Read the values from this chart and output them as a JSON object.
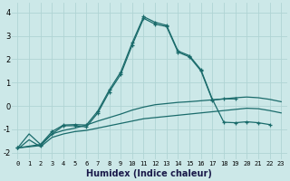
{
  "xlabel": "Humidex (Indice chaleur)",
  "bg_color": "#cce8e8",
  "grid_color": "#b0d4d4",
  "line_color": "#1a6b6b",
  "xlim": [
    -0.5,
    23.5
  ],
  "ylim": [
    -2.3,
    4.4
  ],
  "xticks": [
    0,
    1,
    2,
    3,
    4,
    5,
    6,
    7,
    8,
    9,
    10,
    11,
    12,
    13,
    14,
    15,
    16,
    17,
    18,
    19,
    20,
    21,
    22,
    23
  ],
  "yticks": [
    -2,
    -1,
    0,
    1,
    2,
    3,
    4
  ],
  "lines": [
    {
      "x": [
        0,
        1,
        2,
        3,
        4,
        5,
        6,
        7,
        8,
        9,
        10,
        11,
        12,
        13,
        14,
        15,
        16,
        17,
        18,
        19,
        20,
        21,
        22,
        23
      ],
      "y": [
        -1.85,
        -1.45,
        -1.75,
        -1.35,
        -1.2,
        -1.1,
        -1.05,
        -0.95,
        -0.85,
        -0.75,
        -0.65,
        -0.55,
        -0.5,
        -0.45,
        -0.4,
        -0.35,
        -0.3,
        -0.25,
        -0.2,
        -0.15,
        -0.1,
        -0.12,
        -0.2,
        -0.3
      ],
      "marker": null,
      "lw": 0.9
    },
    {
      "x": [
        0,
        1,
        2,
        3,
        4,
        5,
        6,
        7,
        8,
        9,
        10,
        11,
        12,
        13,
        14,
        15,
        16,
        17,
        18,
        19,
        20,
        21,
        22,
        23
      ],
      "y": [
        -1.8,
        -1.2,
        -1.65,
        -1.2,
        -1.05,
        -0.95,
        -0.82,
        -0.65,
        -0.5,
        -0.35,
        -0.18,
        -0.05,
        0.05,
        0.1,
        0.15,
        0.18,
        0.22,
        0.26,
        0.3,
        0.35,
        0.38,
        0.35,
        0.28,
        0.18
      ],
      "marker": null,
      "lw": 0.9
    },
    {
      "x": [
        0,
        2,
        3,
        4,
        5,
        6,
        7,
        8,
        9,
        10,
        11,
        12,
        13,
        14,
        15,
        16,
        17,
        18,
        19
      ],
      "y": [
        -1.8,
        -1.7,
        -1.2,
        -0.85,
        -0.85,
        -0.9,
        -0.3,
        0.6,
        1.35,
        2.6,
        3.75,
        3.5,
        3.4,
        2.3,
        2.1,
        1.5,
        0.25,
        0.3,
        0.3
      ],
      "marker": "+",
      "lw": 0.9
    },
    {
      "x": [
        0,
        2,
        3,
        4,
        5,
        6,
        7,
        8,
        9,
        10,
        11,
        12,
        13,
        14,
        15,
        16,
        17,
        18,
        19,
        20,
        21,
        22
      ],
      "y": [
        -1.8,
        -1.65,
        -1.1,
        -0.82,
        -0.8,
        -0.82,
        -0.22,
        0.68,
        1.45,
        2.7,
        3.82,
        3.58,
        3.45,
        2.35,
        2.15,
        1.55,
        0.28,
        -0.7,
        -0.72,
        -0.68,
        -0.72,
        -0.8
      ],
      "marker": "+",
      "lw": 0.9
    }
  ]
}
